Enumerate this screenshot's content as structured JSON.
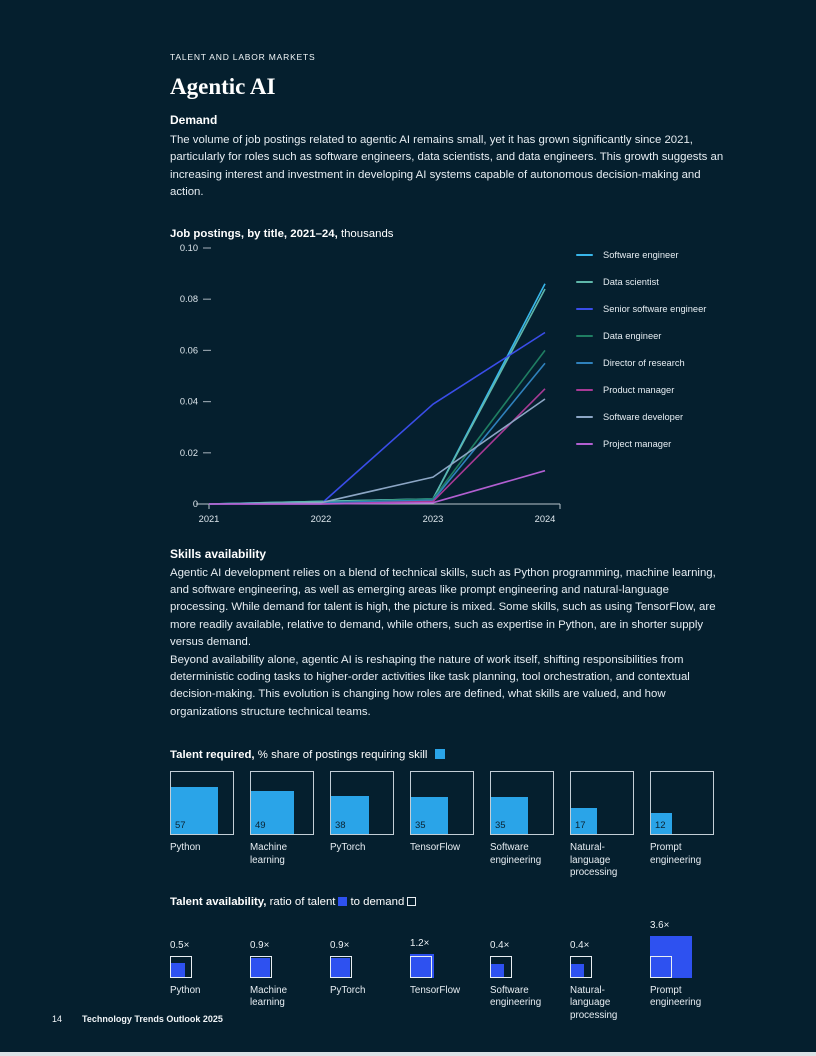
{
  "header": {
    "eyebrow": "TALENT AND LABOR MARKETS",
    "title": "Agentic AI"
  },
  "demand": {
    "heading": "Demand",
    "paragraph": "The volume of job postings related to agentic AI remains small, yet it has grown significantly since 2021, particularly for roles such as software engineers, data scientists, and data engineers. This growth suggests an increasing interest and investment in developing AI systems capable of autonomous decision-making and action."
  },
  "chart_data": [
    {
      "type": "line",
      "title_bold": "Job postings, by title, 2021–24,",
      "title_unit": "thousands",
      "x": [
        "2021",
        "2022",
        "2023",
        "2024"
      ],
      "ylim": [
        0,
        0.1
      ],
      "grid": false,
      "legend_position": "right",
      "y_ticks": [
        {
          "label": "0.10",
          "value": 0.1,
          "dash": true
        },
        {
          "label": "0.08",
          "value": 0.08,
          "dash": true
        },
        {
          "label": "0.06",
          "value": 0.06,
          "dash": true
        },
        {
          "label": "0.04",
          "value": 0.04,
          "dash": true
        },
        {
          "label": "0.02",
          "value": 0.02,
          "dash": true
        },
        {
          "label": "0",
          "value": 0,
          "dash": false
        }
      ],
      "series": [
        {
          "name": "Software engineer",
          "color": "#38b6ea",
          "values": [
            0,
            0.001,
            0.002,
            0.086
          ]
        },
        {
          "name": "Data scientist",
          "color": "#5fb7aa",
          "values": [
            0,
            0.001,
            0.002,
            0.084
          ]
        },
        {
          "name": "Senior software engineer",
          "color": "#3a4de9",
          "values": [
            0,
            0,
            0.039,
            0.067
          ]
        },
        {
          "name": "Data engineer",
          "color": "#1f7e62",
          "values": [
            0,
            0.0005,
            0.002,
            0.06
          ]
        },
        {
          "name": "Director of research",
          "color": "#2f81bc",
          "values": [
            0,
            0.0005,
            0.0015,
            0.055
          ]
        },
        {
          "name": "Product manager",
          "color": "#a83a95",
          "values": [
            0,
            0,
            0.001,
            0.045
          ]
        },
        {
          "name": "Software developer",
          "color": "#8ca6c5",
          "values": [
            0,
            0.0005,
            0.0105,
            0.041
          ]
        },
        {
          "name": "Project manager",
          "color": "#b25fd1",
          "values": [
            0,
            0,
            0.0005,
            0.013
          ]
        }
      ]
    },
    {
      "type": "bar",
      "title": "Talent required, % share of postings requiring skill",
      "categories": [
        "Python",
        "Machine learning",
        "PyTorch",
        "TensorFlow",
        "Software engineering",
        "Natural-language processing",
        "Prompt engineering"
      ],
      "values": [
        57,
        49,
        38,
        35,
        35,
        17,
        12
      ]
    },
    {
      "type": "bar",
      "title": "Talent availability, ratio of talent to demand",
      "categories": [
        "Python",
        "Machine learning",
        "PyTorch",
        "TensorFlow",
        "Software engineering",
        "Natural-language processing",
        "Prompt engineering"
      ],
      "values": [
        0.5,
        0.9,
        0.9,
        1.2,
        0.4,
        0.4,
        3.6
      ]
    }
  ],
  "skills": {
    "heading": "Skills availability",
    "paragraph1": "Agentic AI development relies on a blend of technical skills, such as Python programming, machine learning, and software engineering, as well as emerging areas like prompt engineering and natural-language processing. While demand for talent is high, the picture is mixed. Some skills, such as using TensorFlow, are more readily available, relative to demand, while others, such as expertise in Python, are in shorter supply versus demand.",
    "paragraph2": "Beyond availability alone, agentic AI is reshaping the nature of work itself, shifting responsibilities from deterministic coding tasks to higher-order activities like task planning, tool orchestration, and contextual decision-making. This evolution is changing how roles are defined, what skills are valued, and how organizations structure technical teams."
  },
  "talent_required": {
    "title_bold": "Talent required,",
    "title_rest": "% share of postings requiring skill",
    "fill_color": "#2aa4e8",
    "items": [
      {
        "skill": "Python",
        "value": 57
      },
      {
        "skill": "Machine learning",
        "value": 49
      },
      {
        "skill": "PyTorch",
        "value": 38
      },
      {
        "skill": "TensorFlow",
        "value": 35
      },
      {
        "skill": "Software engineering",
        "value": 35
      },
      {
        "skill": "Natural-language processing",
        "value": 17
      },
      {
        "skill": "Prompt engineering",
        "value": 12
      }
    ]
  },
  "talent_availability": {
    "title_bold": "Talent availability,",
    "title_part1": "ratio of talent",
    "title_part2": "to demand",
    "fill_color": "#2e51f0",
    "items": [
      {
        "skill": "Python",
        "ratio": 0.5,
        "label": "0.5×"
      },
      {
        "skill": "Machine learning",
        "ratio": 0.9,
        "label": "0.9×"
      },
      {
        "skill": "PyTorch",
        "ratio": 0.9,
        "label": "0.9×"
      },
      {
        "skill": "TensorFlow",
        "ratio": 1.2,
        "label": "1.2×"
      },
      {
        "skill": "Software engineering",
        "ratio": 0.4,
        "label": "0.4×"
      },
      {
        "skill": "Natural-language processing",
        "ratio": 0.4,
        "label": "0.4×"
      },
      {
        "skill": "Prompt engineering",
        "ratio": 3.6,
        "label": "3.6×"
      }
    ]
  },
  "footer": {
    "page_number": "14",
    "doc_title": "Technology Trends Outlook 2025"
  }
}
